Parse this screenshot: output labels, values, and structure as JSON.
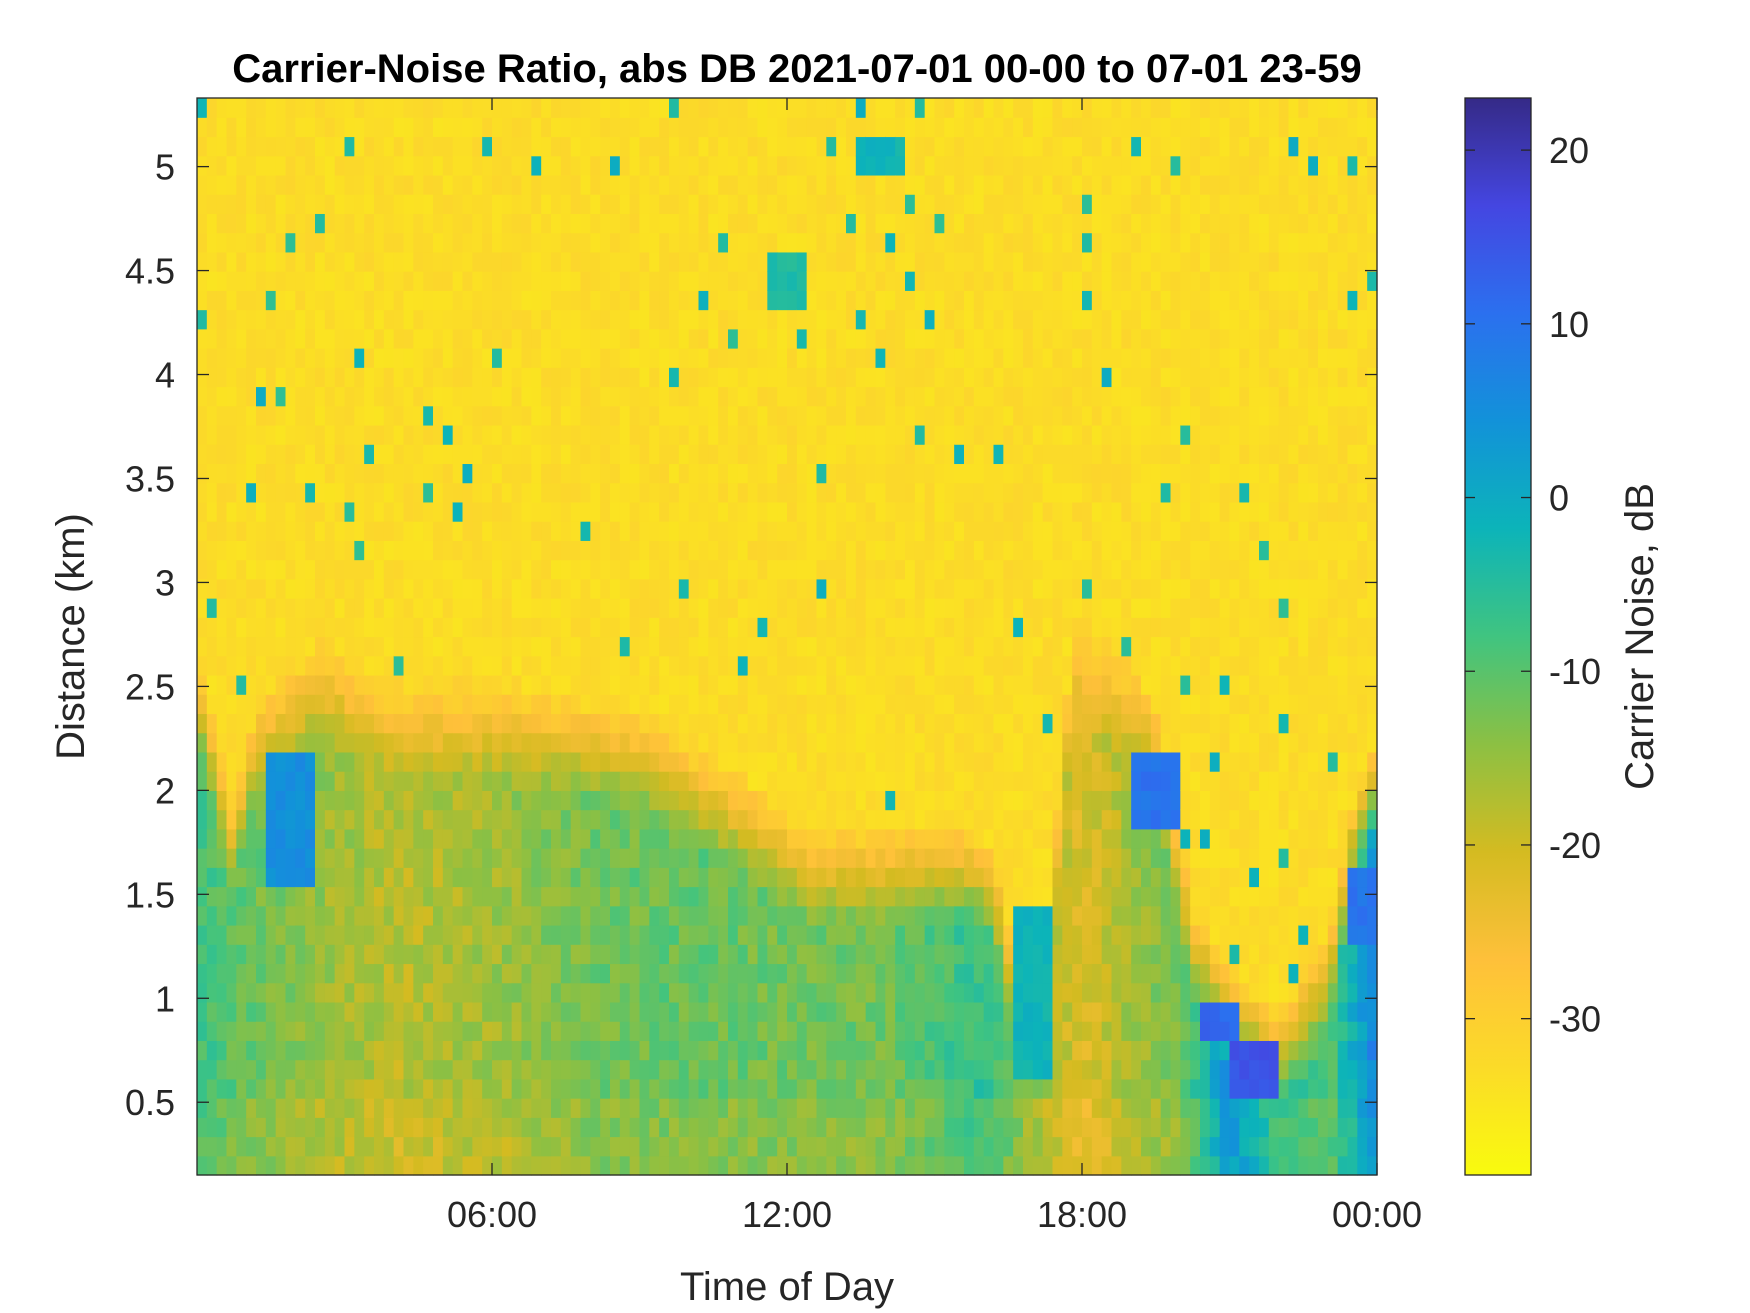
{
  "chart_data": {
    "type": "heatmap",
    "title": "Carrier-Noise Ratio, abs DB 2021-07-01 00-00 to 07-01 23-59",
    "xlabel": "Time of Day",
    "ylabel": "Distance (km)",
    "xlim": [
      0,
      24
    ],
    "ylim": [
      0.15,
      5.33
    ],
    "x_ticks": [
      {
        "value": 6,
        "label": "06:00"
      },
      {
        "value": 12,
        "label": "12:00"
      },
      {
        "value": 18,
        "label": "18:00"
      },
      {
        "value": 24,
        "label": "00:00"
      }
    ],
    "y_ticks": [
      {
        "value": 0.5,
        "label": "0.5"
      },
      {
        "value": 1,
        "label": "1"
      },
      {
        "value": 1.5,
        "label": "1.5"
      },
      {
        "value": 2,
        "label": "2"
      },
      {
        "value": 2.5,
        "label": "2.5"
      },
      {
        "value": 3,
        "label": "3"
      },
      {
        "value": 3.5,
        "label": "3.5"
      },
      {
        "value": 4,
        "label": "4"
      },
      {
        "value": 4.5,
        "label": "4.5"
      },
      {
        "value": 5,
        "label": "5"
      }
    ],
    "colorbar": {
      "label": "Carrier Noise, dB",
      "range": [
        -39,
        23
      ],
      "ticks": [
        {
          "value": 20,
          "label": "20"
        },
        {
          "value": 10,
          "label": "10"
        },
        {
          "value": 0,
          "label": "0"
        },
        {
          "value": -10,
          "label": "-10"
        },
        {
          "value": -20,
          "label": "-20"
        },
        {
          "value": -30,
          "label": "-30"
        }
      ],
      "colormap": "parula (reversed)"
    },
    "grid": false,
    "background_level_db": -33,
    "transition_boundary_km": [
      [
        0,
        2.45
      ],
      [
        0.7,
        1.75
      ],
      [
        1.2,
        2.2
      ],
      [
        2.5,
        2.5
      ],
      [
        4,
        2.3
      ],
      [
        6,
        2.3
      ],
      [
        9,
        2.15
      ],
      [
        11,
        1.85
      ],
      [
        12.5,
        1.6
      ],
      [
        14,
        1.6
      ],
      [
        15.5,
        1.6
      ],
      [
        16.2,
        1.5
      ],
      [
        16.8,
        0.8
      ],
      [
        17.3,
        1.1
      ],
      [
        17.8,
        2.6
      ],
      [
        19,
        2.4
      ],
      [
        19.5,
        2.2
      ],
      [
        20.3,
        1.2
      ],
      [
        21,
        0.9
      ],
      [
        22,
        0.7
      ],
      [
        23,
        1.1
      ],
      [
        23.5,
        1.7
      ],
      [
        24,
        2.0
      ]
    ],
    "low_layer_levels_db": [
      [
        0,
        -8
      ],
      [
        2,
        -14
      ],
      [
        4,
        -18
      ],
      [
        6,
        -16
      ],
      [
        8,
        -12
      ],
      [
        10,
        -11
      ],
      [
        12,
        -12
      ],
      [
        14,
        -12
      ],
      [
        16,
        -6
      ],
      [
        17,
        -14
      ],
      [
        18,
        -22
      ],
      [
        19,
        -16
      ],
      [
        20,
        -12
      ],
      [
        21,
        5
      ],
      [
        22,
        -6
      ],
      [
        23,
        -10
      ],
      [
        24,
        8
      ]
    ],
    "features": [
      {
        "time_h": 1.9,
        "from_km": 1.55,
        "to_km": 2.2,
        "level_db": 5
      },
      {
        "time_h": 13.9,
        "from_km": 4.95,
        "to_km": 5.1,
        "level_db": -2
      },
      {
        "time_h": 12.0,
        "from_km": 4.3,
        "to_km": 4.55,
        "level_db": -4
      },
      {
        "time_h": 20.8,
        "from_km": 0.8,
        "to_km": 1.0,
        "level_db": 12
      },
      {
        "time_h": 21.5,
        "from_km": 0.55,
        "to_km": 0.8,
        "level_db": 15
      },
      {
        "time_h": 19.5,
        "from_km": 1.85,
        "to_km": 2.15,
        "level_db": 10
      },
      {
        "time_h": 17.0,
        "from_km": 0.6,
        "to_km": 1.4,
        "level_db": -2
      },
      {
        "time_h": 23.8,
        "from_km": 1.3,
        "to_km": 1.6,
        "level_db": 10
      }
    ]
  }
}
